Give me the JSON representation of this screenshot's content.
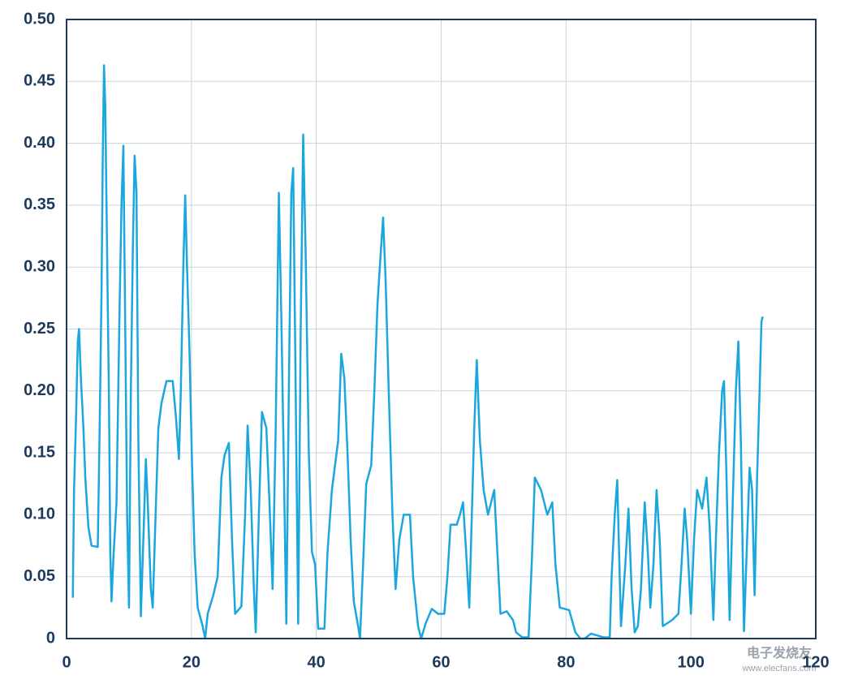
{
  "chart_data": {
    "type": "line",
    "x": [
      1,
      1.2,
      1.5,
      1.8,
      2,
      2.3,
      2.7,
      3,
      3.5,
      4,
      5,
      5.3,
      5.6,
      5.8,
      6,
      6.2,
      6.5,
      6.8,
      7,
      7.2,
      7.5,
      8,
      8.5,
      8.8,
      9.1,
      9.4,
      9.7,
      10,
      10.3,
      10.6,
      10.9,
      11.2,
      11.5,
      11.9,
      12.3,
      12.7,
      13,
      13.5,
      13.8,
      14.2,
      14.7,
      15.2,
      16,
      17,
      17.5,
      18,
      18.3,
      18.7,
      19,
      19.3,
      19.7,
      20.1,
      20.5,
      21,
      21.8,
      22.2,
      22.6,
      23.5,
      24.2,
      24.8,
      25.3,
      26,
      26.5,
      27,
      28,
      28.6,
      29,
      29.5,
      30,
      30.3,
      30.8,
      31.3,
      32,
      32.5,
      33,
      33.5,
      34,
      34.4,
      34.8,
      35.2,
      35.6,
      36,
      36.3,
      36.7,
      37.1,
      37.5,
      37.9,
      38.3,
      38.8,
      39.3,
      39.8,
      40.3,
      41.3,
      41.8,
      42.5,
      43.5,
      44,
      44.5,
      45,
      45.5,
      46,
      46.7,
      47,
      47.5,
      48,
      48.8,
      49.3,
      49.8,
      50.3,
      50.7,
      51.1,
      51.6,
      52.2,
      52.7,
      53.3,
      54,
      55,
      55.5,
      56.3,
      56.8,
      57.5,
      58.5,
      59.5,
      60.5,
      61,
      61.5,
      62.5,
      63,
      63.5,
      64,
      64.5,
      65.3,
      65.7,
      66.2,
      66.8,
      67.5,
      68.5,
      69,
      69.5,
      70.5,
      71.5,
      72,
      73,
      74,
      74.5,
      75,
      76,
      77,
      77.8,
      78.3,
      79,
      80.5,
      81.5,
      82.3,
      83,
      84,
      86,
      87,
      87.3,
      87.8,
      88.2,
      88.8,
      89.5,
      90,
      90.5,
      91,
      91.5,
      92,
      92.6,
      93.1,
      93.5,
      94,
      94.5,
      95,
      95.5,
      97,
      98,
      98.5,
      99,
      99.4,
      100,
      100.5,
      101,
      101.8,
      102.5,
      103,
      103.6,
      104,
      104.5,
      105,
      105.3,
      105.7,
      106.2,
      106.7,
      107.2,
      107.6,
      108,
      108.5,
      109,
      109.4,
      109.8,
      110.2,
      110.6,
      111,
      111.3,
      111.5
    ],
    "series": [
      {
        "color": "#1aa7dd",
        "values": [
          0.033,
          0.12,
          0.175,
          0.24,
          0.25,
          0.21,
          0.17,
          0.13,
          0.09,
          0.075,
          0.074,
          0.17,
          0.28,
          0.39,
          0.463,
          0.43,
          0.31,
          0.19,
          0.07,
          0.03,
          0.065,
          0.11,
          0.27,
          0.35,
          0.398,
          0.25,
          0.1,
          0.025,
          0.2,
          0.31,
          0.39,
          0.36,
          0.16,
          0.018,
          0.08,
          0.145,
          0.11,
          0.04,
          0.025,
          0.09,
          0.17,
          0.19,
          0.208,
          0.208,
          0.18,
          0.145,
          0.2,
          0.3,
          0.358,
          0.3,
          0.23,
          0.14,
          0.07,
          0.025,
          0.01,
          0,
          0.02,
          0.035,
          0.05,
          0.13,
          0.148,
          0.158,
          0.08,
          0.02,
          0.026,
          0.1,
          0.172,
          0.12,
          0.04,
          0.005,
          0.1,
          0.183,
          0.17,
          0.11,
          0.04,
          0.17,
          0.36,
          0.26,
          0.14,
          0.012,
          0.2,
          0.36,
          0.38,
          0.2,
          0.012,
          0.25,
          0.407,
          0.31,
          0.15,
          0.07,
          0.06,
          0.008,
          0.008,
          0.07,
          0.12,
          0.16,
          0.23,
          0.21,
          0.15,
          0.08,
          0.03,
          0.01,
          0,
          0.06,
          0.125,
          0.14,
          0.2,
          0.27,
          0.31,
          0.34,
          0.29,
          0.2,
          0.1,
          0.04,
          0.08,
          0.1,
          0.1,
          0.05,
          0.01,
          0,
          0.012,
          0.024,
          0.02,
          0.02,
          0.05,
          0.092,
          0.092,
          0.1,
          0.11,
          0.07,
          0.025,
          0.17,
          0.225,
          0.16,
          0.12,
          0.1,
          0.12,
          0.07,
          0.02,
          0.022,
          0.015,
          0.005,
          0.001,
          0.001,
          0.06,
          0.13,
          0.12,
          0.1,
          0.11,
          0.06,
          0.025,
          0.023,
          0.005,
          0,
          0,
          0.004,
          0.001,
          0.001,
          0.05,
          0.1,
          0.128,
          0.01,
          0.06,
          0.105,
          0.04,
          0.005,
          0.01,
          0.04,
          0.11,
          0.07,
          0.025,
          0.06,
          0.12,
          0.08,
          0.01,
          0.015,
          0.02,
          0.06,
          0.105,
          0.08,
          0.02,
          0.08,
          0.12,
          0.105,
          0.13,
          0.09,
          0.015,
          0.08,
          0.15,
          0.2,
          0.208,
          0.13,
          0.015,
          0.11,
          0.2,
          0.24,
          0.16,
          0.006,
          0.08,
          0.138,
          0.12,
          0.035,
          0.13,
          0.2,
          0.256,
          0.26
        ]
      }
    ],
    "xlim": [
      0,
      120
    ],
    "xticks": [
      0,
      20,
      40,
      60,
      80,
      100,
      120
    ],
    "ylim": [
      0,
      0.5
    ],
    "yticks": [
      0,
      0.05,
      {
        "value": 0.1,
        "label": "0.10"
      },
      0.15,
      {
        "value": 0.2,
        "label": "0.20"
      },
      0.25,
      {
        "value": 0.3,
        "label": "0.30"
      },
      0.35,
      {
        "value": 0.4,
        "label": "0.40"
      },
      0.45,
      {
        "value": 0.5,
        "label": "0.50"
      }
    ],
    "grid": true
  },
  "watermark": {
    "name": "电子发烧友",
    "url": "www.elecfans.com"
  }
}
